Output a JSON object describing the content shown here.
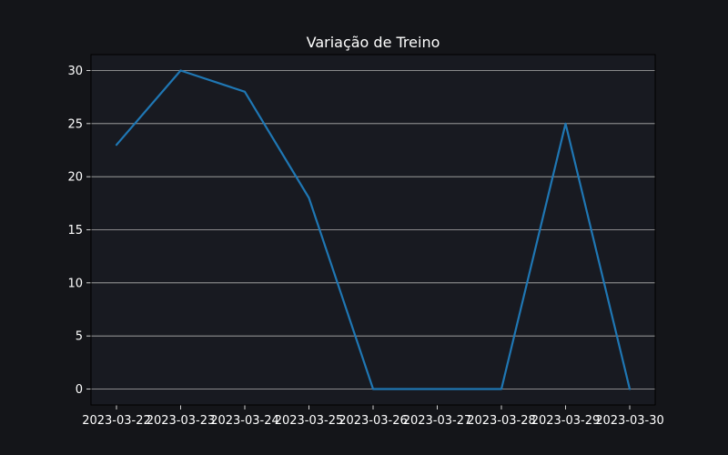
{
  "chart_data": {
    "type": "line",
    "title": "Variação de Treino",
    "xlabel": "",
    "ylabel": "",
    "x": [
      "2023-03-22",
      "2023-03-23",
      "2023-03-24",
      "2023-03-25",
      "2023-03-26",
      "2023-03-27",
      "2023-03-28",
      "2023-03-29",
      "2023-03-30"
    ],
    "series": [
      {
        "values": [
          23,
          30,
          28,
          18,
          0,
          0,
          0,
          25,
          0
        ]
      }
    ],
    "ylim": [
      -1.5,
      31.5
    ],
    "yticks": [
      0,
      5,
      10,
      15,
      20,
      25,
      30
    ],
    "grid": "horizontal",
    "colors": {
      "figure_background": "#141519",
      "plot_background": "#181a21",
      "line": "#1f77b4",
      "grid": "#b0b0b0",
      "text": "#ffffff",
      "spine": "#000000"
    }
  }
}
